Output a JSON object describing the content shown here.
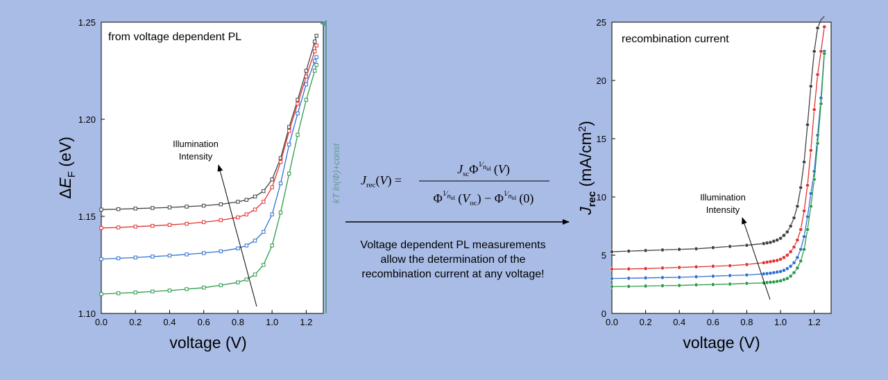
{
  "chart_data": [
    {
      "type": "line",
      "inset_title": "from voltage dependent PL",
      "xlabel": "voltage (V)",
      "ylabel": "ΔE_F (eV)",
      "xlim": [
        0.0,
        1.3
      ],
      "ylim": [
        1.1,
        1.25
      ],
      "x_ticks": [
        "0.0",
        "0.2",
        "0.4",
        "0.6",
        "0.8",
        "1.0",
        "1.2"
      ],
      "y_ticks": [
        "1.10",
        "1.15",
        "1.20",
        "1.25"
      ],
      "annotation": [
        "Illumination",
        "Intensity"
      ],
      "series": [
        {
          "color": "#404040",
          "x": [
            0.0,
            0.1,
            0.2,
            0.3,
            0.4,
            0.5,
            0.6,
            0.7,
            0.8,
            0.85,
            0.9,
            0.95,
            1.0,
            1.05,
            1.1,
            1.15,
            1.2,
            1.25,
            1.26
          ],
          "y": [
            1.1535,
            1.1537,
            1.154,
            1.1543,
            1.1546,
            1.155,
            1.1555,
            1.1562,
            1.1575,
            1.1585,
            1.1602,
            1.163,
            1.169,
            1.18,
            1.196,
            1.21,
            1.225,
            1.24,
            1.243
          ]
        },
        {
          "color": "#e03030",
          "x": [
            0.0,
            0.1,
            0.2,
            0.3,
            0.4,
            0.5,
            0.6,
            0.7,
            0.8,
            0.85,
            0.9,
            0.95,
            1.0,
            1.05,
            1.1,
            1.15,
            1.2,
            1.25,
            1.26
          ],
          "y": [
            1.144,
            1.1443,
            1.1447,
            1.1451,
            1.1456,
            1.1462,
            1.147,
            1.148,
            1.1495,
            1.151,
            1.1535,
            1.1575,
            1.165,
            1.178,
            1.194,
            1.208,
            1.222,
            1.235,
            1.238
          ]
        },
        {
          "color": "#2f6fd0",
          "x": [
            0.0,
            0.1,
            0.2,
            0.3,
            0.4,
            0.5,
            0.6,
            0.7,
            0.8,
            0.85,
            0.9,
            0.95,
            1.0,
            1.05,
            1.1,
            1.15,
            1.2,
            1.25,
            1.26
          ],
          "y": [
            1.128,
            1.1284,
            1.1288,
            1.1293,
            1.1298,
            1.1304,
            1.1311,
            1.132,
            1.1335,
            1.135,
            1.1375,
            1.142,
            1.151,
            1.167,
            1.187,
            1.203,
            1.218,
            1.23,
            1.232
          ]
        },
        {
          "color": "#2a9a4a",
          "x": [
            0.0,
            0.1,
            0.2,
            0.3,
            0.4,
            0.5,
            0.6,
            0.7,
            0.8,
            0.85,
            0.9,
            0.95,
            1.0,
            1.05,
            1.1,
            1.15,
            1.2,
            1.25,
            1.26
          ],
          "y": [
            1.11,
            1.1104,
            1.1108,
            1.1113,
            1.1118,
            1.1125,
            1.1133,
            1.1145,
            1.116,
            1.1175,
            1.12,
            1.125,
            1.135,
            1.152,
            1.172,
            1.192,
            1.21,
            1.225,
            1.228
          ]
        }
      ]
    },
    {
      "type": "scatter",
      "inset_title": "recombination current",
      "xlabel": "voltage (V)",
      "ylabel": "J_rec (mA/cm²)",
      "xlim": [
        0.0,
        1.3
      ],
      "ylim": [
        0,
        25
      ],
      "x_ticks": [
        "0.0",
        "0.2",
        "0.4",
        "0.6",
        "0.8",
        "1.0",
        "1.2"
      ],
      "y_ticks": [
        "0",
        "5",
        "10",
        "15",
        "20",
        "25"
      ],
      "annotation": [
        "Illumination",
        "Intensity"
      ],
      "series": [
        {
          "color": "#404040",
          "x": [
            0.0,
            0.1,
            0.2,
            0.3,
            0.4,
            0.5,
            0.6,
            0.7,
            0.8,
            0.9,
            0.92,
            0.94,
            0.96,
            0.98,
            1.0,
            1.02,
            1.04,
            1.06,
            1.08,
            1.1,
            1.12,
            1.14,
            1.16,
            1.18,
            1.2,
            1.22,
            1.24,
            1.26
          ],
          "y": [
            5.3,
            5.35,
            5.4,
            5.45,
            5.5,
            5.55,
            5.65,
            5.75,
            5.85,
            6.0,
            6.05,
            6.1,
            6.2,
            6.3,
            6.45,
            6.7,
            7.0,
            7.5,
            8.2,
            9.2,
            10.8,
            13.0,
            16.2,
            19.5,
            22.5,
            24.5,
            25.2,
            25.8
          ]
        },
        {
          "color": "#e03030",
          "x": [
            0.0,
            0.1,
            0.2,
            0.3,
            0.4,
            0.5,
            0.6,
            0.7,
            0.8,
            0.9,
            0.92,
            0.94,
            0.96,
            0.98,
            1.0,
            1.02,
            1.04,
            1.06,
            1.08,
            1.1,
            1.12,
            1.14,
            1.16,
            1.18,
            1.2,
            1.22,
            1.24,
            1.26
          ],
          "y": [
            3.8,
            3.82,
            3.85,
            3.9,
            3.95,
            4.0,
            4.05,
            4.1,
            4.2,
            4.35,
            4.4,
            4.45,
            4.5,
            4.55,
            4.65,
            4.8,
            5.0,
            5.3,
            5.7,
            6.3,
            7.2,
            8.8,
            11.0,
            14.0,
            17.5,
            20.5,
            22.5,
            24.6
          ]
        },
        {
          "color": "#2f6fd0",
          "x": [
            0.0,
            0.1,
            0.2,
            0.3,
            0.4,
            0.5,
            0.6,
            0.7,
            0.8,
            0.9,
            0.92,
            0.94,
            0.96,
            0.98,
            1.0,
            1.02,
            1.04,
            1.06,
            1.08,
            1.1,
            1.12,
            1.14,
            1.16,
            1.18,
            1.2,
            1.22,
            1.24,
            1.26
          ],
          "y": [
            3.0,
            3.02,
            3.05,
            3.08,
            3.1,
            3.15,
            3.2,
            3.25,
            3.3,
            3.4,
            3.42,
            3.45,
            3.5,
            3.55,
            3.6,
            3.7,
            3.85,
            4.05,
            4.35,
            4.8,
            5.5,
            6.6,
            8.3,
            10.3,
            12.2,
            15.3,
            18.5,
            22.5
          ]
        },
        {
          "color": "#2a9a4a",
          "x": [
            0.0,
            0.1,
            0.2,
            0.3,
            0.4,
            0.5,
            0.6,
            0.7,
            0.8,
            0.9,
            0.92,
            0.94,
            0.96,
            0.98,
            1.0,
            1.02,
            1.04,
            1.06,
            1.08,
            1.1,
            1.12,
            1.14,
            1.16,
            1.18,
            1.2,
            1.22,
            1.24,
            1.26
          ],
          "y": [
            2.3,
            2.32,
            2.35,
            2.38,
            2.4,
            2.45,
            2.48,
            2.52,
            2.58,
            2.62,
            2.65,
            2.68,
            2.7,
            2.75,
            2.8,
            2.9,
            3.0,
            3.2,
            3.5,
            3.9,
            4.5,
            5.5,
            7.2,
            9.2,
            11.5,
            14.6,
            18.0,
            22.3
          ]
        }
      ]
    }
  ],
  "right_axis_label": "kT ln(Φ)+const",
  "equation": {
    "lhs": "J_rec(V) =",
    "numerator": "J_sc Φ^(1/n_id) (V)",
    "denominator": "Φ^(1/n_id) (V_oc) − Φ^(1/n_id) (0)"
  },
  "middle_text": [
    "Voltage dependent PL measurements",
    "allow the determination of the",
    "recombination current at any voltage!"
  ],
  "colors": {
    "background": "#a9bce6",
    "plot_bg": "#ffffff",
    "right_axis": "#5f9a92"
  }
}
